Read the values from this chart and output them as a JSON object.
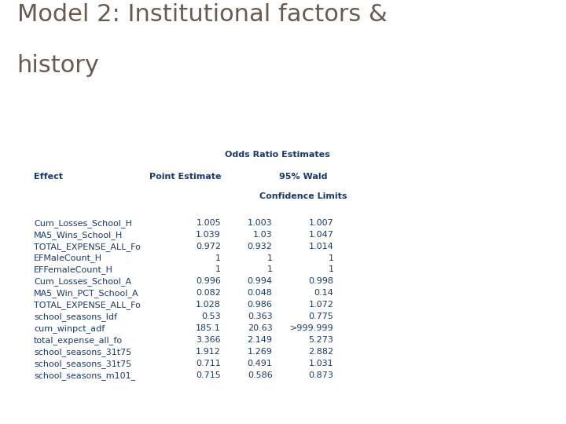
{
  "title_line1": "Model 2: Institutional factors &",
  "title_line2": "history",
  "title_color": "#6b5a50",
  "title_fontsize": 22,
  "header_bar_color": "#9ab3c0",
  "accent_rect_color": "#c87941",
  "table_bg_color": "#c8d0d4",
  "rows": [
    [
      "Cum_Losses_School_H",
      "1.005",
      "1.003",
      "1.007"
    ],
    [
      "MA5_Wins_School_H",
      "1.039",
      "1.03",
      "1.047"
    ],
    [
      "TOTAL_EXPENSE_ALL_Fo",
      "0.972",
      "0.932",
      "1.014"
    ],
    [
      "EFMaleCount_H",
      "1",
      "1",
      "1"
    ],
    [
      "EFFemaleCount_H",
      "1",
      "1",
      "1"
    ],
    [
      "Cum_Losses_School_A",
      "0.996",
      "0.994",
      "0.998"
    ],
    [
      "MA5_Win_PCT_School_A",
      "0.082",
      "0.048",
      "0.14"
    ],
    [
      "TOTAL_EXPENSE_ALL_Fo",
      "1.028",
      "0.986",
      "1.072"
    ],
    [
      "school_seasons_ldf",
      "0.53",
      "0.363",
      "0.775"
    ],
    [
      "cum_winpct_adf",
      "185.1",
      "20.63",
      ">999.999"
    ],
    [
      "total_expense_all_fo",
      "3.366",
      "2.149",
      "5.273"
    ],
    [
      "school_seasons_31t75",
      "1.912",
      "1.269",
      "2.882"
    ],
    [
      "school_seasons_31t75",
      "0.711",
      "0.491",
      "1.031"
    ],
    [
      "school_seasons_m101_",
      "0.715",
      "0.586",
      "0.873"
    ]
  ],
  "text_color": "#1a3a6b",
  "font_size": 8,
  "title_font": "DejaVu Sans",
  "table_font": "DejaVu Sans"
}
